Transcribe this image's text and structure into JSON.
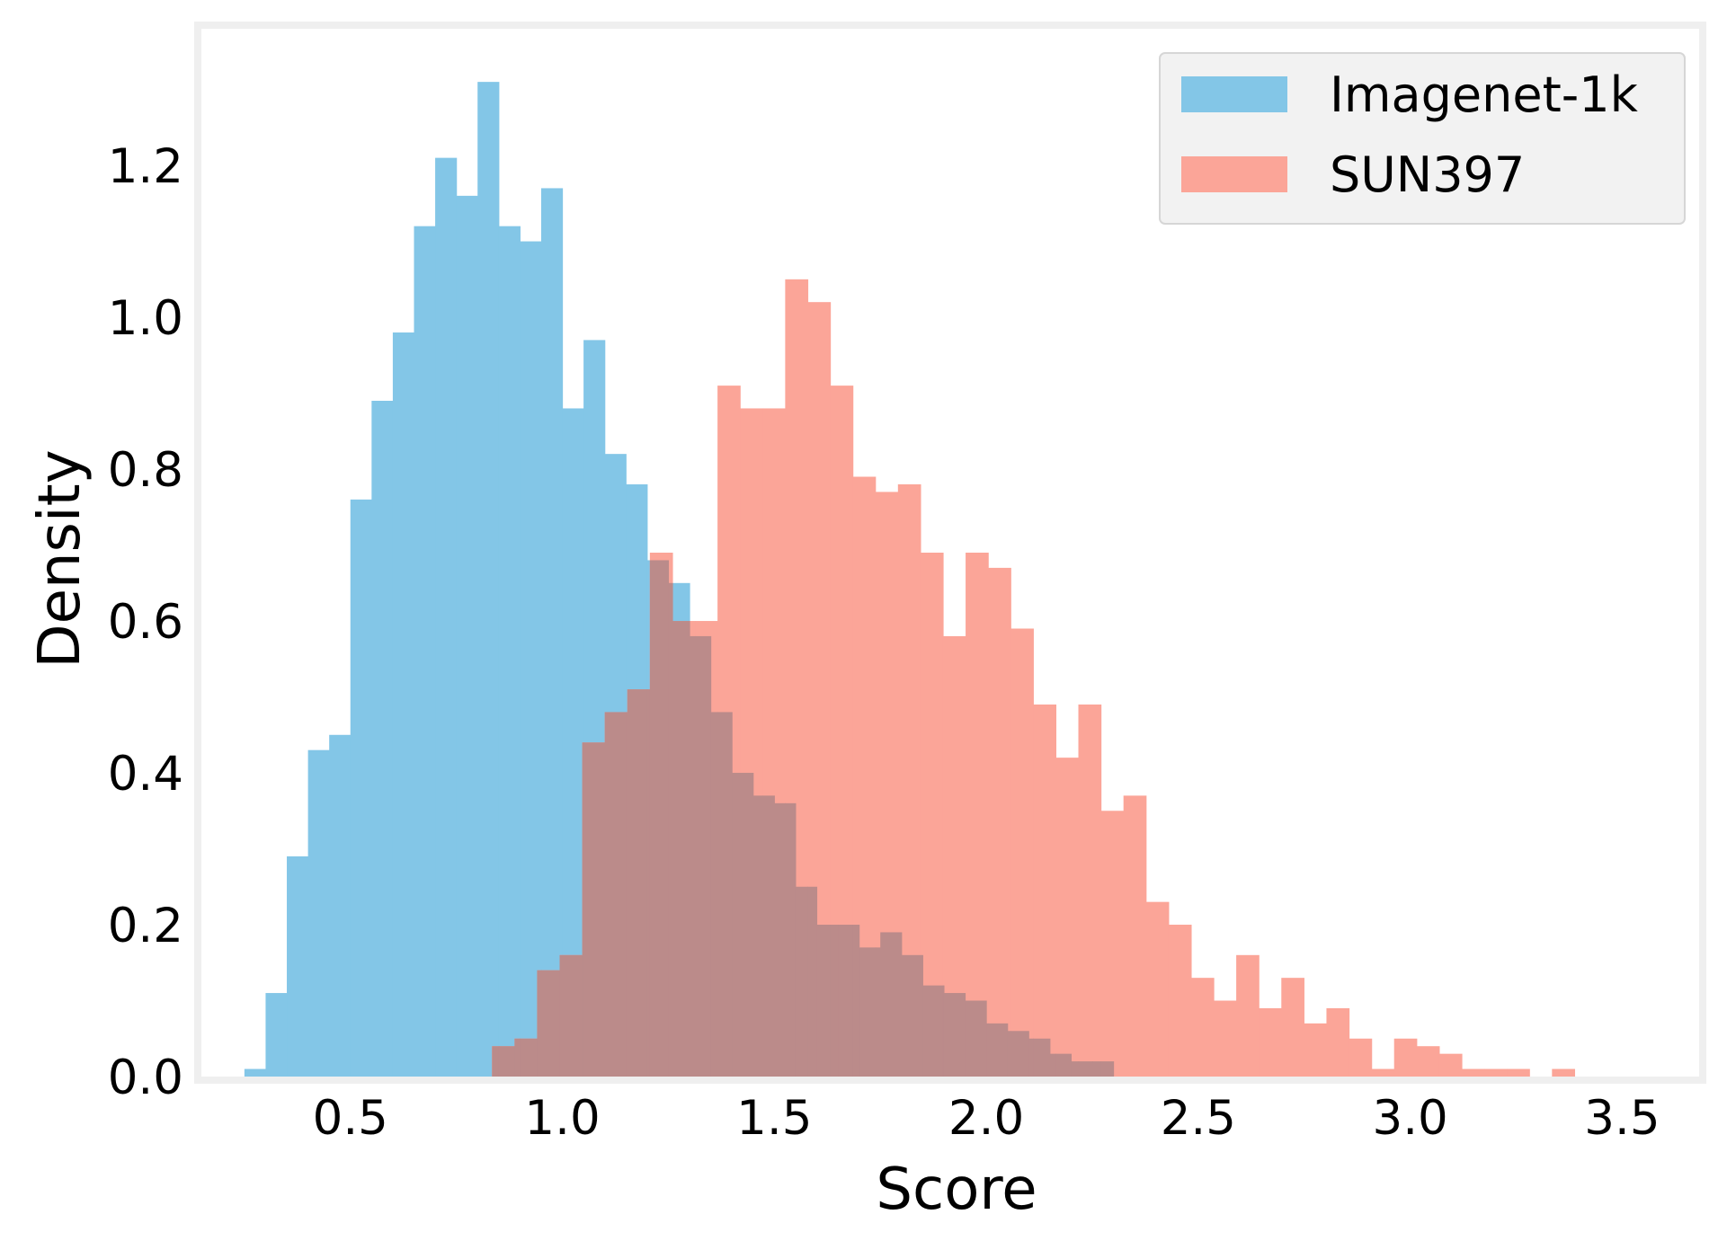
{
  "chart_data": {
    "type": "histogram",
    "title": "",
    "xlabel": "Score",
    "ylabel": "Density",
    "xlim": [
      0.14,
      3.69
    ],
    "ylim": [
      0,
      1.38
    ],
    "xticks": [
      "0.5",
      "1.0",
      "1.5",
      "2.0",
      "2.5",
      "3.0",
      "3.5"
    ],
    "yticks": [
      "0.0",
      "0.2",
      "0.4",
      "0.6",
      "0.8",
      "1.0",
      "1.2"
    ],
    "grid": false,
    "legend_position": "top-right",
    "overlap_color": "#bb8b8a",
    "series": [
      {
        "name": "Imagenet-1k",
        "color": "#83c6e7",
        "bin_start": 0.25,
        "bin_width": 0.05,
        "values": [
          0.01,
          0.11,
          0.29,
          0.43,
          0.45,
          0.76,
          0.89,
          0.98,
          1.12,
          1.21,
          1.16,
          1.31,
          1.12,
          1.1,
          1.17,
          0.88,
          0.97,
          0.82,
          0.78,
          0.68,
          0.65,
          0.58,
          0.48,
          0.4,
          0.37,
          0.36,
          0.25,
          0.2,
          0.2,
          0.17,
          0.19,
          0.16,
          0.12,
          0.11,
          0.1,
          0.07,
          0.06,
          0.05,
          0.03,
          0.02,
          0.02
        ]
      },
      {
        "name": "SUN397",
        "color": "#fba598",
        "bin_start": 0.834,
        "bin_width": 0.0532,
        "values": [
          0.04,
          0.05,
          0.14,
          0.16,
          0.44,
          0.48,
          0.51,
          0.69,
          0.6,
          0.6,
          0.91,
          0.88,
          0.88,
          1.05,
          1.02,
          0.91,
          0.79,
          0.77,
          0.78,
          0.69,
          0.58,
          0.69,
          0.67,
          0.59,
          0.49,
          0.42,
          0.49,
          0.35,
          0.37,
          0.23,
          0.2,
          0.13,
          0.1,
          0.16,
          0.09,
          0.13,
          0.07,
          0.09,
          0.05,
          0.01,
          0.05,
          0.04,
          0.03,
          0.01,
          0.01,
          0.01,
          0.0,
          0.01,
          0.0
        ]
      }
    ]
  }
}
